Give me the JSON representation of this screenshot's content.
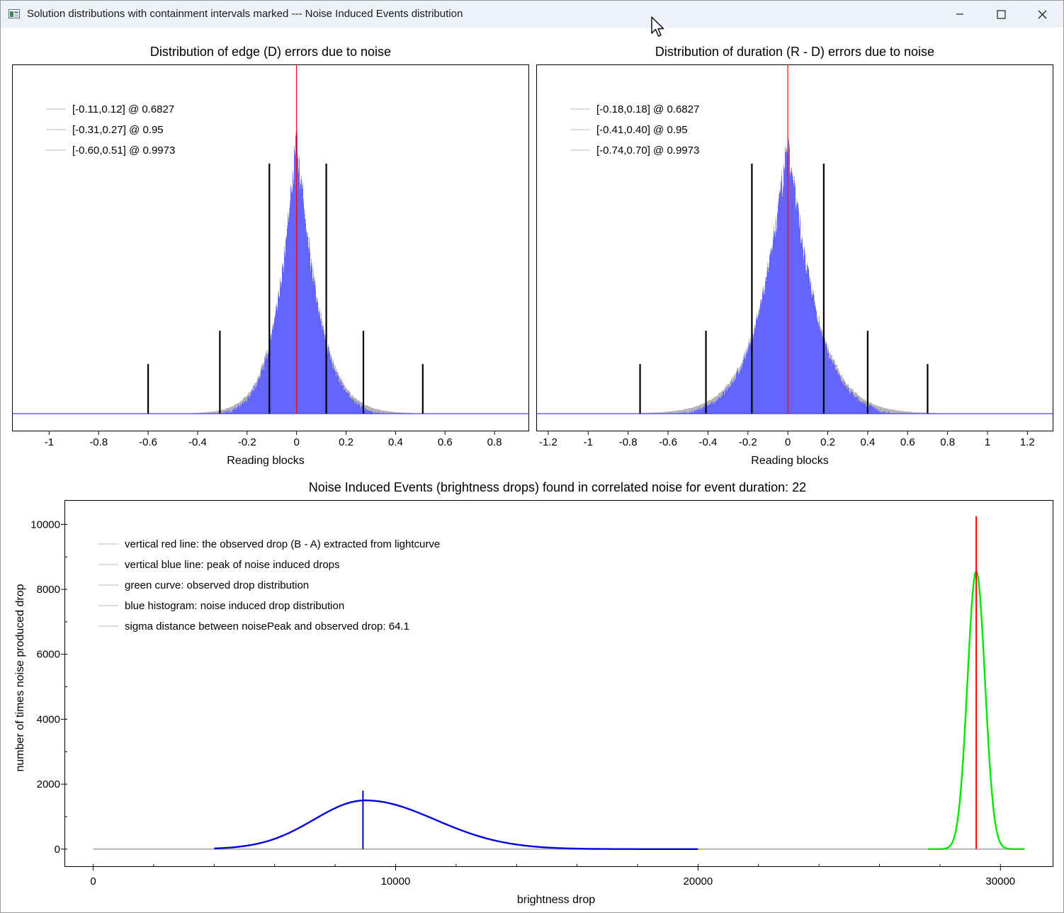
{
  "window": {
    "title": "Solution distributions with containment intervals marked --- Noise Induced Events distribution",
    "icons": {
      "app": "app-window-icon",
      "minimize": "minimize-icon",
      "maximize": "maximize-icon",
      "close": "close-icon",
      "cursor": "mouse-pointer-icon"
    }
  },
  "colors": {
    "histogram_fill": "#6464ff",
    "histogram_edge": "#b4b4b4",
    "zero_line": "#ff0000",
    "interval_bars": "#000000",
    "noise_curve": "#0000e0",
    "observed_curve": "#00e600",
    "observed_line": "#ff0000",
    "baseline_blue": "#4848e8",
    "baseline_gray": "#b4b4b4"
  },
  "chart_data": [
    {
      "type": "bar",
      "title": "Distribution of edge (D) errors due to noise",
      "xlabel": "Reading blocks",
      "ylabel": "",
      "xlim": [
        -1.15,
        0.94
      ],
      "xticks": [
        "-1",
        "-0.8",
        "-0.6",
        "-0.4",
        "-0.2",
        "0",
        "0.2",
        "0.4",
        "0.6",
        "0.8"
      ],
      "xtick_values": [
        -1,
        -0.8,
        -0.6,
        -0.4,
        -0.2,
        0,
        0.2,
        0.4,
        0.6,
        0.8
      ],
      "legend_position": "top-left",
      "legend": [
        "[-0.11,0.12] @ 0.6827",
        "[-0.31,0.27] @ 0.95",
        "[-0.60,0.51] @ 0.9973"
      ],
      "intervals": [
        {
          "lo": -0.11,
          "hi": 0.12,
          "conf": 0.6827
        },
        {
          "lo": -0.31,
          "hi": 0.27,
          "conf": 0.95
        },
        {
          "lo": -0.6,
          "hi": 0.51,
          "conf": 0.9973
        }
      ],
      "observed_marker_x": 0,
      "distribution": {
        "peak_x": 0.0,
        "peak_height": 0.83,
        "width_left": 0.085,
        "width_right": 0.095,
        "shape": "laplace-like, relative peak height"
      }
    },
    {
      "type": "bar",
      "title": "Distribution of duration (R - D) errors due to noise",
      "xlabel": "Reading blocks",
      "ylabel": "",
      "xlim": [
        -1.26,
        1.33
      ],
      "xticks": [
        "-1.2",
        "-1",
        "-0.8",
        "-0.6",
        "-0.4",
        "-0.2",
        "0",
        "0.2",
        "0.4",
        "0.6",
        "0.8",
        "1",
        "1.2"
      ],
      "xtick_values": [
        -1.2,
        -1,
        -0.8,
        -0.6,
        -0.4,
        -0.2,
        0,
        0.2,
        0.4,
        0.6,
        0.8,
        1,
        1.2
      ],
      "legend_position": "top-left",
      "legend": [
        "[-0.18,0.18] @ 0.6827",
        "[-0.41,0.40] @ 0.95",
        "[-0.74,0.70] @ 0.9973"
      ],
      "intervals": [
        {
          "lo": -0.18,
          "hi": 0.18,
          "conf": 0.6827
        },
        {
          "lo": -0.41,
          "hi": 0.4,
          "conf": 0.95
        },
        {
          "lo": -0.74,
          "hi": 0.7,
          "conf": 0.9973
        }
      ],
      "observed_marker_x": 0,
      "distribution": {
        "peak_x": 0.0,
        "peak_height": 0.82,
        "width_left": 0.15,
        "width_right": 0.15,
        "shape": "laplace-like, relative peak height"
      }
    },
    {
      "type": "line",
      "title": "Noise Induced Events (brightness drops) found in correlated noise for event duration: 22",
      "xlabel": "brightness drop",
      "ylabel": "number of times noise produced drop",
      "xlim": [
        -950,
        31750
      ],
      "ylim": [
        -550,
        10750
      ],
      "xticks": [
        "0",
        "10000",
        "20000",
        "30000"
      ],
      "xtick_values": [
        0,
        10000,
        20000,
        30000
      ],
      "yticks": [
        "0",
        "2000",
        "4000",
        "6000",
        "8000",
        "10000"
      ],
      "ytick_values": [
        0,
        2000,
        4000,
        6000,
        8000,
        10000
      ],
      "legend_position": "top-left",
      "legend": [
        "vertical red line: the observed drop (B - A) extracted from lightcurve",
        "vertical blue line: peak of noise induced drops",
        "green curve: observed drop distribution",
        "blue histogram: noise induced drop distribution",
        "sigma distance between noisePeak and observed drop: 64.1"
      ],
      "noise_distribution": {
        "peak_x": 9000,
        "peak_y": 1500,
        "sigma_left": 1700,
        "sigma_right": 2300,
        "x_range": [
          4000,
          20000
        ]
      },
      "noise_peak_line": {
        "x": 8920,
        "y_top": 1800
      },
      "observed_distribution": {
        "peak_x": 29200,
        "peak_y": 8550,
        "sigma": 290,
        "x_range": [
          27600,
          30800
        ]
      },
      "observed_drop_line": {
        "x": 29200,
        "y_top": 10250
      },
      "baseline_range": [
        0,
        30800
      ]
    }
  ]
}
